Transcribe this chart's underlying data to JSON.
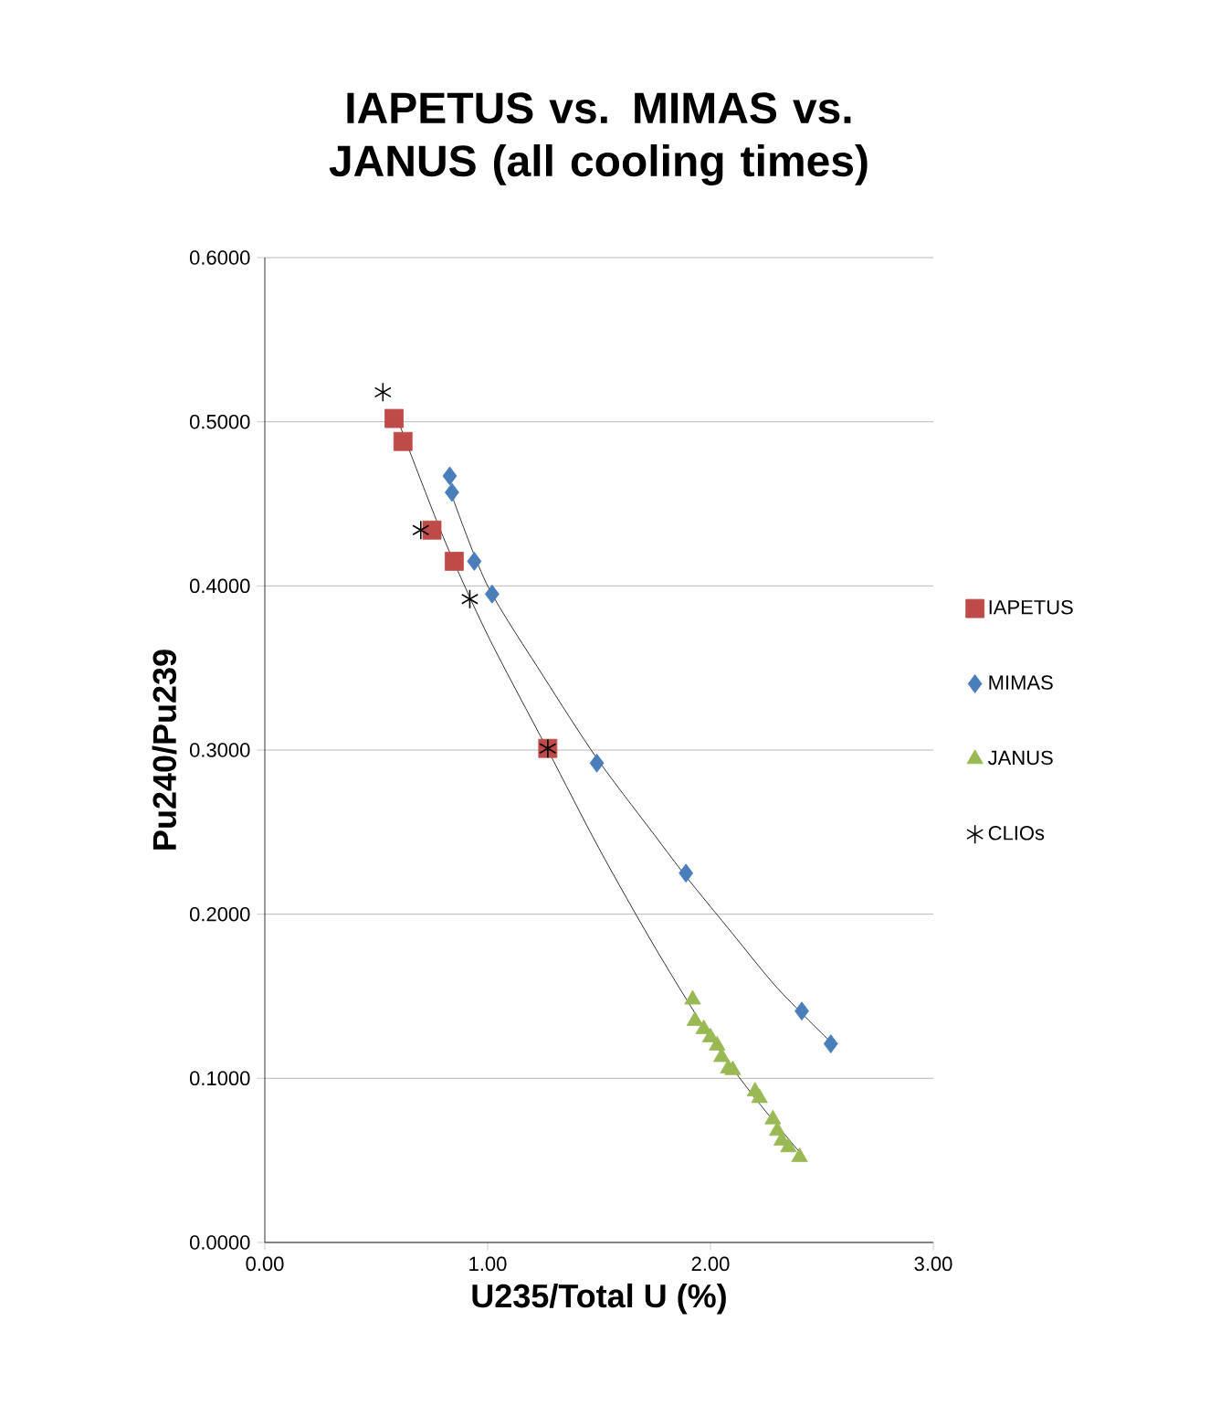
{
  "chart_data": {
    "type": "scatter",
    "title": "IAPETUS vs. MIMAS vs. JANUS (all cooling times)",
    "xlabel": "U235/Total U (%)",
    "ylabel": "Pu240/Pu239",
    "xlim": [
      0,
      3
    ],
    "ylim": [
      0,
      0.6
    ],
    "xticks": [
      {
        "value": 0,
        "label": "0.00"
      },
      {
        "value": 1,
        "label": "1.00"
      },
      {
        "value": 2,
        "label": "2.00"
      },
      {
        "value": 3,
        "label": "3.00"
      }
    ],
    "yticks": [
      {
        "value": 0,
        "label": "0.0000"
      },
      {
        "value": 0.1,
        "label": "0.1000"
      },
      {
        "value": 0.2,
        "label": "0.2000"
      },
      {
        "value": 0.3,
        "label": "0.3000"
      },
      {
        "value": 0.4,
        "label": "0.4000"
      },
      {
        "value": 0.5,
        "label": "0.5000"
      },
      {
        "value": 0.6,
        "label": "0.6000"
      }
    ],
    "grid": "y",
    "legend": "right",
    "series": [
      {
        "name": "IAPETUS",
        "color": "#be4b48",
        "marker": "square",
        "x": [
          0.58,
          0.62,
          0.75,
          0.85,
          1.27
        ],
        "values": [
          0.502,
          0.488,
          0.434,
          0.415,
          0.301
        ]
      },
      {
        "name": "MIMAS",
        "color": "#4a7ebb",
        "marker": "diamond",
        "x": [
          0.83,
          0.84,
          0.94,
          1.02,
          1.49,
          1.89,
          2.41,
          2.54
        ],
        "values": [
          0.467,
          0.457,
          0.415,
          0.395,
          0.292,
          0.225,
          0.141,
          0.121
        ]
      },
      {
        "name": "JANUS",
        "color": "#98b954",
        "marker": "triangle",
        "x": [
          1.92,
          1.93,
          1.97,
          2.0,
          2.03,
          2.05,
          2.08,
          2.1,
          2.2,
          2.22,
          2.28,
          2.3,
          2.32,
          2.35,
          2.4
        ],
        "values": [
          0.148,
          0.135,
          0.13,
          0.125,
          0.12,
          0.113,
          0.106,
          0.105,
          0.092,
          0.088,
          0.075,
          0.068,
          0.062,
          0.058,
          0.052
        ]
      },
      {
        "name": "CLIOs",
        "color": "#000000",
        "marker": "cross",
        "x": [
          0.53,
          0.7,
          0.92,
          1.27
        ],
        "values": [
          0.518,
          0.434,
          0.392,
          0.301
        ]
      },
      {
        "type": "line",
        "color": "#000000",
        "marker": "none",
        "x": [
          0.6,
          0.8,
          1.0,
          1.27,
          1.5,
          1.75,
          2.0,
          2.2,
          2.4
        ],
        "values": [
          0.5,
          0.43,
          0.37,
          0.3,
          0.24,
          0.18,
          0.125,
          0.088,
          0.055
        ]
      },
      {
        "type": "line",
        "color": "#000000",
        "marker": "none",
        "x": [
          0.84,
          1.0,
          1.25,
          1.49,
          1.75,
          1.89,
          2.1,
          2.3,
          2.54
        ],
        "values": [
          0.455,
          0.4,
          0.345,
          0.295,
          0.248,
          0.223,
          0.188,
          0.155,
          0.122
        ]
      }
    ]
  }
}
